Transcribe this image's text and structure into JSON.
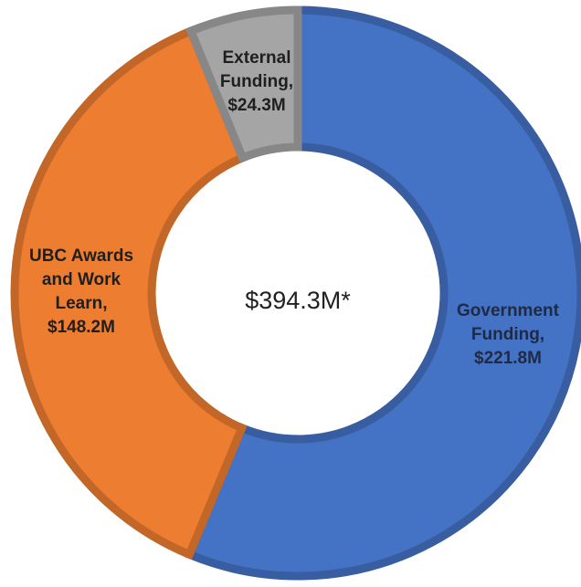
{
  "chart_data": {
    "type": "pie",
    "variant": "donut",
    "center_label": "$394.3M*",
    "slices": [
      {
        "name": "Government Funding",
        "value": 221.8,
        "label_lines": [
          "Government",
          "Funding,",
          "$221.8M"
        ],
        "color": "#4472C4",
        "text_color": "#1F2A44"
      },
      {
        "name": "UBC Awards and Work Learn",
        "value": 148.2,
        "label_lines": [
          "UBC Awards",
          "and Work",
          "Learn,",
          "$148.2M"
        ],
        "color": "#ED7D31",
        "text_color": "#1F1F1F"
      },
      {
        "name": "External Funding",
        "value": 24.3,
        "label_lines": [
          "External",
          "Funding,",
          "$24.3M"
        ],
        "color": "#A5A5A5",
        "text_color": "#1F1F1F"
      }
    ],
    "legend": "none"
  }
}
